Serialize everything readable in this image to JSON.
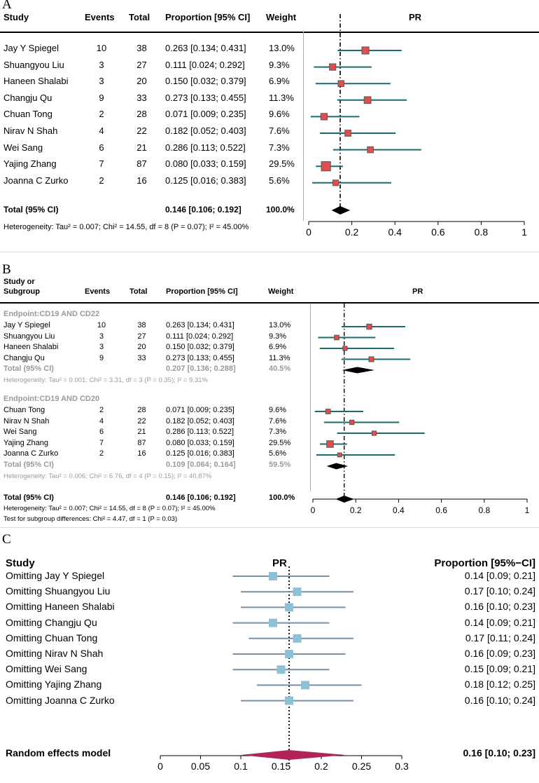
{
  "panelA": {
    "label": "A",
    "headers": {
      "study": "Study",
      "events": "Events",
      "total": "Total",
      "prop": "Proportion [95% CI]",
      "weight": "Weight",
      "pr": "PR"
    },
    "rows": [
      {
        "study": "Jay Y Spiegel",
        "events": "10",
        "total": "38",
        "ci_text": "0.263 [0.134; 0.431]",
        "weight": "13.0%"
      },
      {
        "study": "Shuangyou Liu",
        "events": "3",
        "total": "27",
        "ci_text": "0.111 [0.024; 0.292]",
        "weight": "9.3%"
      },
      {
        "study": "Haneen Shalabi",
        "events": "3",
        "total": "20",
        "ci_text": "0.150 [0.032; 0.379]",
        "weight": "6.9%"
      },
      {
        "study": "Changju Qu",
        "events": "9",
        "total": "33",
        "ci_text": "0.273 [0.133; 0.455]",
        "weight": "11.3%"
      },
      {
        "study": "Chuan Tong",
        "events": "2",
        "total": "28",
        "ci_text": "0.071 [0.009; 0.235]",
        "weight": "9.6%"
      },
      {
        "study": "Nirav N Shah",
        "events": "4",
        "total": "22",
        "ci_text": "0.182 [0.052; 0.403]",
        "weight": "7.6%"
      },
      {
        "study": "Wei Sang",
        "events": "6",
        "total": "21",
        "ci_text": "0.286 [0.113; 0.522]",
        "weight": "7.3%"
      },
      {
        "study": "Yajing Zhang",
        "events": "7",
        "total": "87",
        "ci_text": "0.080 [0.033; 0.159]",
        "weight": "29.5%"
      },
      {
        "study": "Joanna C Zurko",
        "events": "2",
        "total": "16",
        "ci_text": "0.125 [0.016; 0.383]",
        "weight": "5.6%"
      }
    ],
    "total": {
      "label": "Total (95% CI)",
      "ci_text": "0.146 [0.106; 0.192]",
      "weight": "100.0%"
    },
    "heterogeneity": "Heterogeneity: Tau² = 0.007; Chi² = 14.55, df = 8 (P = 0.07); I² = 45.00%"
  },
  "panelB": {
    "label": "B",
    "headers": {
      "study_line1": "Study or",
      "study_line2": "Subgroup",
      "events": "Events",
      "total": "Total",
      "prop": "Proportion [95% CI]",
      "weight": "Weight",
      "pr": "PR"
    },
    "groups": [
      {
        "title": "Endpoint:CD19 AND CD22",
        "rows": [
          {
            "study": "Jay Y Spiegel",
            "events": "10",
            "total": "38",
            "ci_text": "0.263 [0.134; 0.431]",
            "weight": "13.0%"
          },
          {
            "study": "Shuangyou Liu",
            "events": "3",
            "total": "27",
            "ci_text": "0.111 [0.024; 0.292]",
            "weight": "9.3%"
          },
          {
            "study": "Haneen Shalabi",
            "events": "3",
            "total": "20",
            "ci_text": "0.150 [0.032; 0.379]",
            "weight": "6.9%"
          },
          {
            "study": "Changju Qu",
            "events": "9",
            "total": "33",
            "ci_text": "0.273 [0.133; 0.455]",
            "weight": "11.3%"
          }
        ],
        "total": {
          "label": "Total (95% CI)",
          "ci_text": "0.207 [0.136; 0.288]",
          "weight": "40.5%"
        },
        "heterogeneity": "Heterogeneity: Tau² = 0.001; Chi² = 3.31, df = 3 (P = 0.35); I² = 9.31%"
      },
      {
        "title": "Endpoint:CD19 AND CD20",
        "rows": [
          {
            "study": "Chuan Tong",
            "events": "2",
            "total": "28",
            "ci_text": "0.071 [0.009; 0.235]",
            "weight": "9.6%"
          },
          {
            "study": "Nirav N Shah",
            "events": "4",
            "total": "22",
            "ci_text": "0.182 [0.052; 0.403]",
            "weight": "7.6%"
          },
          {
            "study": "Wei Sang",
            "events": "6",
            "total": "21",
            "ci_text": "0.286 [0.113; 0.522]",
            "weight": "7.3%"
          },
          {
            "study": "Yajing Zhang",
            "events": "7",
            "total": "87",
            "ci_text": "0.080 [0.033; 0.159]",
            "weight": "29.5%"
          },
          {
            "study": "Joanna C Zurko",
            "events": "2",
            "total": "16",
            "ci_text": "0.125 [0.016; 0.383]",
            "weight": "5.6%"
          }
        ],
        "total": {
          "label": "Total (95% CI)",
          "ci_text": "0.109 [0.064; 0.164]",
          "weight": "59.5%"
        },
        "heterogeneity": "Heterogeneity: Tau² = 0.006; Chi² = 6.76, df = 4 (P = 0.15); I² = 40.87%"
      }
    ],
    "total": {
      "label": "Total (95% CI)",
      "ci_text": "0.146 [0.106; 0.192]",
      "weight": "100.0%"
    },
    "heterogeneity": "Heterogeneity: Tau² = 0.007; Chi² = 14.55, df = 8 (P = 0.07); I² = 45.00%",
    "subgroup_test": "Test for subgroup differences: Chi² = 4.47, df = 1 (P = 0.03)"
  },
  "panelC": {
    "label": "C",
    "headers": {
      "study": "Study",
      "pr": "PR",
      "prop": "Proportion [95%−CI]"
    },
    "rows": [
      {
        "study": "Omitting Jay Y Spiegel",
        "ci_text": "0.14 [0.09; 0.21]"
      },
      {
        "study": "Omitting Shuangyou Liu",
        "ci_text": "0.17 [0.10; 0.24]"
      },
      {
        "study": "Omitting Haneen Shalabi",
        "ci_text": "0.16 [0.10; 0.23]"
      },
      {
        "study": "Omitting Changju Qu",
        "ci_text": "0.14 [0.09; 0.21]"
      },
      {
        "study": "Omitting Chuan Tong",
        "ci_text": "0.17 [0.11; 0.24]"
      },
      {
        "study": "Omitting Nirav N Shah",
        "ci_text": "0.16 [0.09; 0.23]"
      },
      {
        "study": "Omitting Wei Sang",
        "ci_text": "0.15 [0.09; 0.21]"
      },
      {
        "study": "Omitting Yajing Zhang",
        "ci_text": "0.18 [0.12; 0.25]"
      },
      {
        "study": "Omitting Joanna C Zurko",
        "ci_text": "0.16 [0.10; 0.24]"
      }
    ],
    "total": {
      "label": "Random effects model",
      "ci_text": "0.16 [0.10; 0.23]"
    }
  },
  "colors": {
    "ci_line": "#1b6b6b",
    "square_fill": "#e24d4d",
    "square_edge": "#555555",
    "diamond": "#000000",
    "grey_text": "#9a9a9a",
    "c_line": "#7b8fa6",
    "c_square": "#8ec1d6",
    "c_diamond": "#b0245a"
  },
  "chart_data": [
    {
      "type": "forest",
      "panel": "A",
      "xlabel": "PR",
      "xlim": [
        0,
        1
      ],
      "ticks": [
        0,
        0.2,
        0.4,
        0.6,
        0.8,
        1
      ],
      "tick_labels": [
        "0",
        "0.2",
        "0.4",
        "0.6",
        "0.8",
        "1"
      ],
      "reference_line": 0.146,
      "studies": [
        {
          "name": "Jay Y Spiegel",
          "est": 0.263,
          "lo": 0.134,
          "hi": 0.431,
          "weight": 13.0
        },
        {
          "name": "Shuangyou Liu",
          "est": 0.111,
          "lo": 0.024,
          "hi": 0.292,
          "weight": 9.3
        },
        {
          "name": "Haneen Shalabi",
          "est": 0.15,
          "lo": 0.032,
          "hi": 0.379,
          "weight": 6.9
        },
        {
          "name": "Changju Qu",
          "est": 0.273,
          "lo": 0.133,
          "hi": 0.455,
          "weight": 11.3
        },
        {
          "name": "Chuan Tong",
          "est": 0.071,
          "lo": 0.009,
          "hi": 0.235,
          "weight": 9.6
        },
        {
          "name": "Nirav N Shah",
          "est": 0.182,
          "lo": 0.052,
          "hi": 0.403,
          "weight": 7.6
        },
        {
          "name": "Wei Sang",
          "est": 0.286,
          "lo": 0.113,
          "hi": 0.522,
          "weight": 7.3
        },
        {
          "name": "Yajing Zhang",
          "est": 0.08,
          "lo": 0.033,
          "hi": 0.159,
          "weight": 29.5
        },
        {
          "name": "Joanna C Zurko",
          "est": 0.125,
          "lo": 0.016,
          "hi": 0.383,
          "weight": 5.6
        }
      ],
      "pooled": {
        "est": 0.146,
        "lo": 0.106,
        "hi": 0.192
      }
    },
    {
      "type": "forest",
      "panel": "B",
      "xlabel": "PR",
      "xlim": [
        0,
        1
      ],
      "ticks": [
        0,
        0.2,
        0.4,
        0.6,
        0.8,
        1
      ],
      "tick_labels": [
        "0",
        "0.2",
        "0.4",
        "0.6",
        "0.8",
        "1"
      ],
      "reference_line": 0.146,
      "subgroups": [
        {
          "name": "Endpoint:CD19 AND CD22",
          "studies": [
            {
              "name": "Jay Y Spiegel",
              "est": 0.263,
              "lo": 0.134,
              "hi": 0.431,
              "weight": 13.0
            },
            {
              "name": "Shuangyou Liu",
              "est": 0.111,
              "lo": 0.024,
              "hi": 0.292,
              "weight": 9.3
            },
            {
              "name": "Haneen Shalabi",
              "est": 0.15,
              "lo": 0.032,
              "hi": 0.379,
              "weight": 6.9
            },
            {
              "name": "Changju Qu",
              "est": 0.273,
              "lo": 0.133,
              "hi": 0.455,
              "weight": 11.3
            }
          ],
          "pooled": {
            "est": 0.207,
            "lo": 0.136,
            "hi": 0.288
          }
        },
        {
          "name": "Endpoint:CD19 AND CD20",
          "studies": [
            {
              "name": "Chuan Tong",
              "est": 0.071,
              "lo": 0.009,
              "hi": 0.235,
              "weight": 9.6
            },
            {
              "name": "Nirav N Shah",
              "est": 0.182,
              "lo": 0.052,
              "hi": 0.403,
              "weight": 7.6
            },
            {
              "name": "Wei Sang",
              "est": 0.286,
              "lo": 0.113,
              "hi": 0.522,
              "weight": 7.3
            },
            {
              "name": "Yajing Zhang",
              "est": 0.08,
              "lo": 0.033,
              "hi": 0.159,
              "weight": 29.5
            },
            {
              "name": "Joanna C Zurko",
              "est": 0.125,
              "lo": 0.016,
              "hi": 0.383,
              "weight": 5.6
            }
          ],
          "pooled": {
            "est": 0.109,
            "lo": 0.064,
            "hi": 0.164
          }
        }
      ],
      "pooled": {
        "est": 0.146,
        "lo": 0.106,
        "hi": 0.192
      }
    },
    {
      "type": "forest",
      "panel": "C",
      "xlabel": "PR",
      "xlim": [
        0,
        0.3
      ],
      "ticks": [
        0,
        0.05,
        0.1,
        0.15,
        0.2,
        0.25,
        0.3
      ],
      "tick_labels": [
        "0",
        "0.05",
        "0.1",
        "0.15",
        "0.2",
        "0.25",
        "0.3"
      ],
      "reference_line": 0.16,
      "studies": [
        {
          "name": "Omitting Jay Y Spiegel",
          "est": 0.14,
          "lo": 0.09,
          "hi": 0.21
        },
        {
          "name": "Omitting Shuangyou Liu",
          "est": 0.17,
          "lo": 0.1,
          "hi": 0.24
        },
        {
          "name": "Omitting Haneen Shalabi",
          "est": 0.16,
          "lo": 0.1,
          "hi": 0.23
        },
        {
          "name": "Omitting Changju Qu",
          "est": 0.14,
          "lo": 0.09,
          "hi": 0.21
        },
        {
          "name": "Omitting Chuan Tong",
          "est": 0.17,
          "lo": 0.11,
          "hi": 0.24
        },
        {
          "name": "Omitting Nirav N Shah",
          "est": 0.16,
          "lo": 0.09,
          "hi": 0.23
        },
        {
          "name": "Omitting Wei Sang",
          "est": 0.15,
          "lo": 0.09,
          "hi": 0.21
        },
        {
          "name": "Omitting Yajing Zhang",
          "est": 0.18,
          "lo": 0.12,
          "hi": 0.25
        },
        {
          "name": "Omitting Joanna C Zurko",
          "est": 0.16,
          "lo": 0.1,
          "hi": 0.24
        }
      ],
      "pooled": {
        "est": 0.16,
        "lo": 0.1,
        "hi": 0.23
      }
    }
  ]
}
